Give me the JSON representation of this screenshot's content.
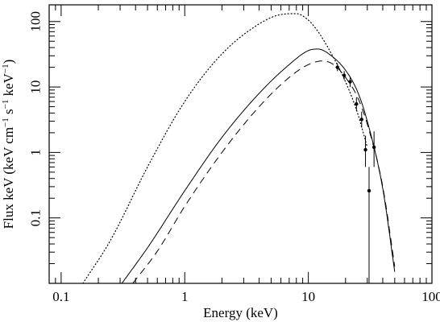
{
  "chart_data": {
    "type": "line",
    "xlabel": "Energy (keV)",
    "ylabel": {
      "base": "Flux keV (keV cm",
      "sup1": "−1",
      "mid1": " s",
      "sup2": "−1",
      "mid2": " keV",
      "sup3": "−1",
      "end": ")"
    },
    "x_scale": "log",
    "y_scale": "log",
    "xlim": [
      0.08,
      100
    ],
    "ylim": [
      0.01,
      180
    ],
    "x_ticks": [
      {
        "value": 0.1,
        "label": "0.1"
      },
      {
        "value": 1,
        "label": "1"
      },
      {
        "value": 10,
        "label": "10"
      },
      {
        "value": 100,
        "label": "100"
      }
    ],
    "y_ticks": [
      {
        "value": 0.1,
        "label": "0.1"
      },
      {
        "value": 1,
        "label": "1"
      },
      {
        "value": 10,
        "label": "10"
      },
      {
        "value": 100,
        "label": "100"
      }
    ],
    "grid": false,
    "legend": "none",
    "series": [
      {
        "style": "solid",
        "x": [
          0.31,
          0.5,
          1,
          2,
          4,
          7,
          10,
          12,
          15,
          20,
          25,
          30,
          40,
          50
        ],
        "y": [
          0.01,
          0.035,
          0.26,
          1.7,
          8.0,
          22,
          36,
          38,
          31,
          18,
          8.5,
          3.0,
          0.28,
          0.015
        ]
      },
      {
        "style": "dashed",
        "x": [
          0.38,
          0.6,
          1,
          2,
          4,
          7,
          10,
          13,
          16,
          20,
          25,
          30,
          40,
          50
        ],
        "y": [
          0.01,
          0.031,
          0.15,
          1.0,
          5.0,
          14,
          22,
          25,
          22,
          14,
          7.0,
          2.7,
          0.3,
          0.018
        ]
      },
      {
        "style": "dotted",
        "x": [
          0.15,
          0.25,
          0.5,
          1,
          2,
          4,
          6,
          8,
          10,
          12,
          15,
          20,
          25,
          30
        ],
        "y": [
          0.01,
          0.045,
          0.6,
          6.0,
          32,
          92,
          128,
          132,
          105,
          70,
          35,
          12,
          4.0,
          1.2
        ]
      }
    ],
    "data_points": [
      {
        "x": 17.2,
        "y": 20,
        "yerr_low": 17.5,
        "yerr_high": 23,
        "xerr": 1.2
      },
      {
        "x": 19.5,
        "y": 15,
        "yerr_low": 12.8,
        "yerr_high": 17.5,
        "xerr": 1.0
      },
      {
        "x": 21.8,
        "y": 12,
        "yerr_low": 10,
        "yerr_high": 14.5,
        "xerr": 1.0
      },
      {
        "x": 24.5,
        "y": 5.5,
        "yerr_low": 4.3,
        "yerr_high": 7.0,
        "xerr": 1.2
      },
      {
        "x": 27.0,
        "y": 3.2,
        "yerr_low": 2.4,
        "yerr_high": 4.2,
        "xerr": 1.2
      },
      {
        "x": 29.0,
        "y": 1.1,
        "yerr_low": 0.6,
        "yerr_high": 1.8,
        "xerr": 0.8
      },
      {
        "x": 31.0,
        "y": 0.26,
        "yerr_low": 0.01,
        "yerr_high": 0.6,
        "xerr": 1.0
      },
      {
        "x": 34.0,
        "y": 1.2,
        "yerr_low": 0.6,
        "yerr_high": 2.1,
        "xerr": 1.2
      }
    ]
  }
}
